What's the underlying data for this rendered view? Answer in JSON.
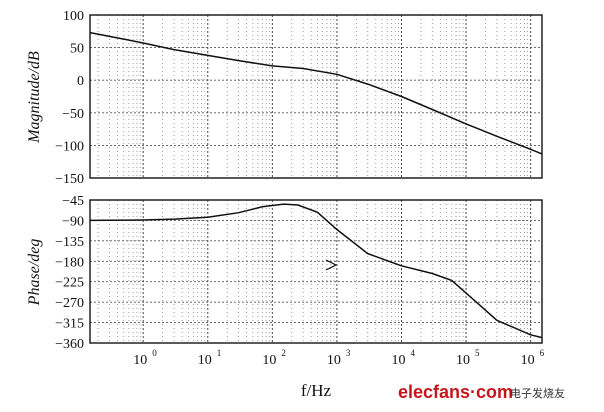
{
  "chart_data": [
    {
      "type": "line",
      "ylabel": "Magnitude/dB",
      "xscale": "log",
      "xlim": [
        0.15,
        1500000
      ],
      "ylim": [
        -150,
        100
      ],
      "yticks": [
        100,
        50,
        0,
        -50,
        -100,
        -150
      ],
      "grid": true,
      "series": [
        {
          "x": [
            0.15,
            0.5,
            1,
            3,
            10,
            30,
            100,
            300,
            1000,
            3000,
            10000,
            30000,
            100000,
            300000,
            1000000,
            1500000
          ],
          "y": [
            73,
            63,
            57,
            47,
            38,
            30,
            22,
            18,
            9,
            -6,
            -25,
            -45,
            -67,
            -86,
            -106,
            -113
          ]
        }
      ]
    },
    {
      "type": "line",
      "ylabel": "Phase/deg",
      "xlabel": "f/Hz",
      "xscale": "log",
      "xlim": [
        0.15,
        1500000
      ],
      "ylim": [
        -360,
        -45
      ],
      "yticks": [
        -45,
        -90,
        -135,
        -180,
        -225,
        -270,
        -315,
        -360
      ],
      "xticks": [
        {
          "base": "10",
          "exp": "0",
          "value": 1
        },
        {
          "base": "10",
          "exp": "1",
          "value": 10
        },
        {
          "base": "10",
          "exp": "2",
          "value": 100
        },
        {
          "base": "10",
          "exp": "3",
          "value": 1000
        },
        {
          "base": "10",
          "exp": "4",
          "value": 10000
        },
        {
          "base": "10",
          "exp": "5",
          "value": 100000
        },
        {
          "base": "10",
          "exp": "6",
          "value": 1000000
        }
      ],
      "grid": true,
      "series": [
        {
          "x": [
            0.15,
            1,
            3,
            10,
            30,
            70,
            150,
            250,
            500,
            1000,
            3000,
            10000,
            30000,
            60000,
            100000,
            300000,
            1000000,
            1500000
          ],
          "y": [
            -90,
            -89,
            -87,
            -83,
            -73,
            -60,
            -54,
            -56,
            -72,
            -110,
            -163,
            -190,
            -207,
            -222,
            -250,
            -310,
            -342,
            -348
          ]
        }
      ]
    }
  ],
  "watermark": {
    "brand": "elecfans·com",
    "cn": "电子发烧友"
  }
}
